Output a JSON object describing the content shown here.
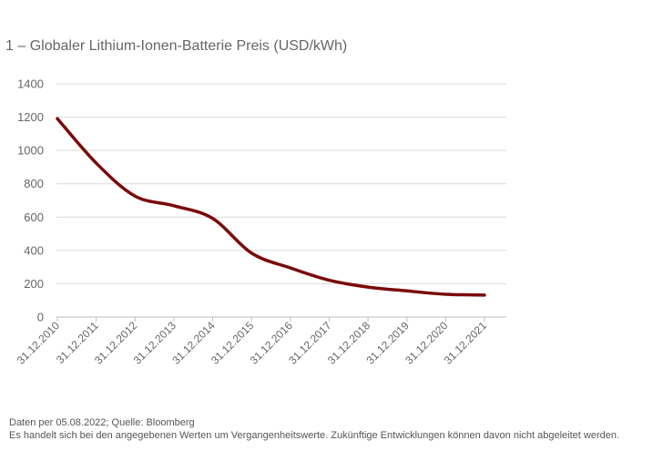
{
  "title": "1 – Globaler Lithium-Ionen-Batterie Preis (USD/kWh)",
  "footnotes": {
    "source": "Daten per 05.08.2022; Quelle: Bloomberg",
    "disclaimer": "Es handelt sich bei den angegebenen Werten um Vergangenheitswerte. Zukünftige Entwicklungen können davon nicht abgeleitet werden."
  },
  "colors": {
    "line": "#7a0a0a",
    "grid": "#d9d9d9",
    "axis": "#bfbfbf",
    "text": "#666666"
  },
  "chart_data": {
    "type": "line",
    "title": "1 – Globaler Lithium-Ionen-Batterie Preis (USD/kWh)",
    "xlabel": "",
    "ylabel": "",
    "ylim": [
      0,
      1400
    ],
    "yticks": [
      0,
      200,
      400,
      600,
      800,
      1000,
      1200,
      1400
    ],
    "grid": true,
    "legend": "none",
    "categories": [
      "31.12.2010",
      "31.12.2011",
      "31.12.2012",
      "31.12.2013",
      "31.12.2014",
      "31.12.2015",
      "31.12.2016",
      "31.12.2017",
      "31.12.2018",
      "31.12.2019",
      "31.12.2020",
      "31.12.2021"
    ],
    "series": [
      {
        "values": [
          1191,
          924,
          726,
          668,
          592,
          384,
          295,
          221,
          180,
          157,
          137,
          132
        ]
      }
    ]
  }
}
